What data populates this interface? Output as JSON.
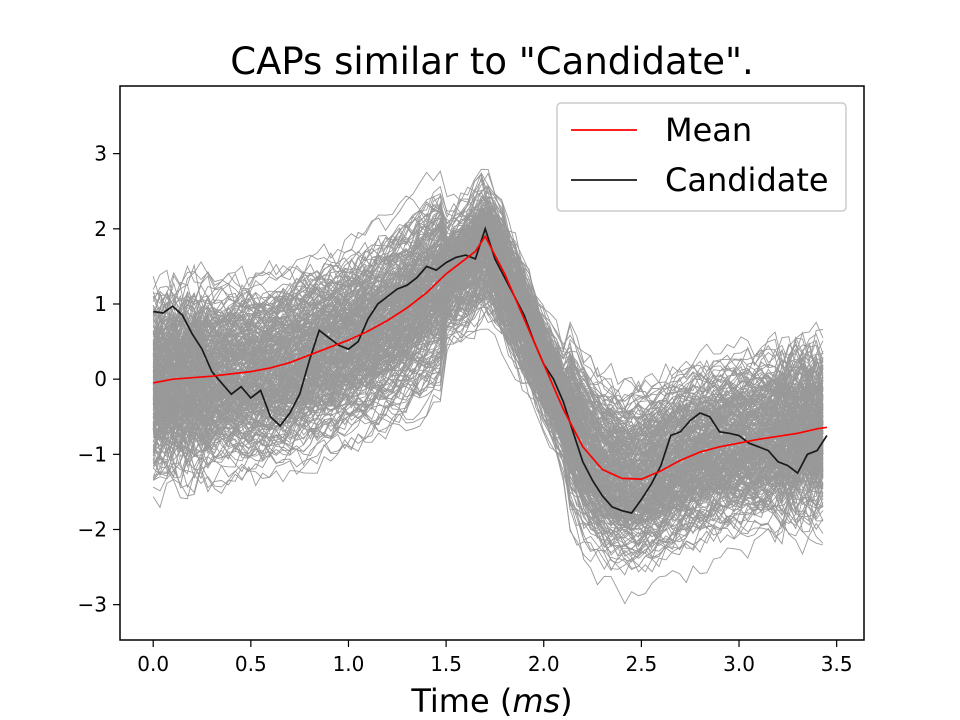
{
  "chart_data": {
    "type": "line",
    "title": "CAPs similar to \"Candidate\".",
    "xlabel": "Time (ms)",
    "xlabel_plain": "Time (",
    "xlabel_unit": "ms",
    "xlabel_close": ")",
    "ylabel": "",
    "xlim": [
      -0.17,
      3.64
    ],
    "ylim": [
      -3.47,
      3.9
    ],
    "xticks": [
      0.0,
      0.5,
      1.0,
      1.5,
      2.0,
      2.5,
      3.0,
      3.5
    ],
    "xtick_labels": [
      "0.0",
      "0.5",
      "1.0",
      "1.5",
      "2.0",
      "2.5",
      "3.0",
      "3.5"
    ],
    "yticks": [
      -3,
      -2,
      -1,
      0,
      1,
      2,
      3
    ],
    "ytick_labels": [
      "−3",
      "−2",
      "−1",
      "0",
      "1",
      "2",
      "3"
    ],
    "grid": false,
    "legend_placement": "upper right",
    "background_traces": {
      "color": "#999999",
      "approximate_count": 300,
      "description_values": "many overlapping gray waveforms spread around the mean"
    },
    "series": [
      {
        "name": "Mean",
        "color": "#ff0000",
        "x": [
          0.0,
          0.1,
          0.2,
          0.3,
          0.4,
          0.5,
          0.6,
          0.7,
          0.8,
          0.9,
          1.0,
          1.1,
          1.2,
          1.3,
          1.4,
          1.5,
          1.6,
          1.65,
          1.7,
          1.75,
          1.8,
          1.9,
          2.0,
          2.1,
          2.2,
          2.3,
          2.4,
          2.5,
          2.6,
          2.7,
          2.8,
          2.9,
          3.0,
          3.1,
          3.2,
          3.3,
          3.4,
          3.45
        ],
        "y": [
          -0.05,
          0.0,
          0.02,
          0.04,
          0.07,
          0.1,
          0.15,
          0.22,
          0.32,
          0.42,
          0.52,
          0.64,
          0.78,
          0.95,
          1.15,
          1.4,
          1.6,
          1.7,
          1.9,
          1.65,
          1.4,
          0.8,
          0.2,
          -0.4,
          -0.9,
          -1.2,
          -1.32,
          -1.33,
          -1.22,
          -1.08,
          -0.97,
          -0.9,
          -0.85,
          -0.8,
          -0.76,
          -0.72,
          -0.66,
          -0.64
        ]
      },
      {
        "name": "Candidate",
        "color": "#1a1a1a",
        "x": [
          0.0,
          0.05,
          0.1,
          0.15,
          0.2,
          0.25,
          0.3,
          0.35,
          0.4,
          0.45,
          0.5,
          0.55,
          0.6,
          0.65,
          0.7,
          0.75,
          0.8,
          0.85,
          0.9,
          0.95,
          1.0,
          1.05,
          1.1,
          1.15,
          1.2,
          1.25,
          1.3,
          1.35,
          1.4,
          1.45,
          1.5,
          1.55,
          1.6,
          1.65,
          1.7,
          1.75,
          1.8,
          1.85,
          1.9,
          1.95,
          2.0,
          2.05,
          2.1,
          2.15,
          2.2,
          2.25,
          2.3,
          2.35,
          2.4,
          2.45,
          2.5,
          2.55,
          2.6,
          2.65,
          2.7,
          2.75,
          2.8,
          2.85,
          2.9,
          2.95,
          3.0,
          3.05,
          3.1,
          3.15,
          3.2,
          3.25,
          3.3,
          3.35,
          3.4,
          3.45
        ],
        "y": [
          0.9,
          0.88,
          0.97,
          0.85,
          0.6,
          0.4,
          0.1,
          -0.05,
          -0.2,
          -0.1,
          -0.25,
          -0.15,
          -0.5,
          -0.62,
          -0.45,
          -0.2,
          0.25,
          0.65,
          0.55,
          0.45,
          0.4,
          0.5,
          0.8,
          1.0,
          1.1,
          1.2,
          1.25,
          1.35,
          1.5,
          1.45,
          1.55,
          1.62,
          1.65,
          1.6,
          2.0,
          1.6,
          1.35,
          1.1,
          0.85,
          0.5,
          0.2,
          0.0,
          -0.3,
          -0.7,
          -1.1,
          -1.35,
          -1.55,
          -1.7,
          -1.75,
          -1.78,
          -1.6,
          -1.4,
          -1.15,
          -0.75,
          -0.7,
          -0.55,
          -0.45,
          -0.5,
          -0.7,
          -0.72,
          -0.75,
          -0.85,
          -0.9,
          -0.95,
          -1.1,
          -1.15,
          -1.25,
          -1.0,
          -0.95,
          -0.75
        ]
      }
    ]
  }
}
